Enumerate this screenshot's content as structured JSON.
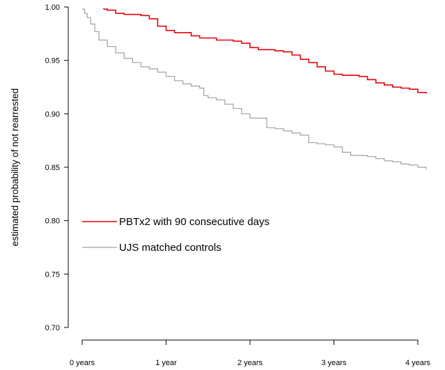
{
  "chart_data": {
    "type": "line",
    "title": "",
    "xlabel": "",
    "ylabel": "estimated probability of not rearrested",
    "xlim": [
      0,
      4.1
    ],
    "ylim": [
      0.7,
      1.0
    ],
    "x_ticks": [
      {
        "value": 0,
        "label": "0 years"
      },
      {
        "value": 1,
        "label": "1 year"
      },
      {
        "value": 2,
        "label": "2 years"
      },
      {
        "value": 3,
        "label": "3 years"
      },
      {
        "value": 4,
        "label": "4 years"
      }
    ],
    "y_ticks": [
      {
        "value": 0.7,
        "label": "0.70"
      },
      {
        "value": 0.75,
        "label": "0.75"
      },
      {
        "value": 0.8,
        "label": "0.80"
      },
      {
        "value": 0.85,
        "label": "0.85"
      },
      {
        "value": 0.9,
        "label": "0.90"
      },
      {
        "value": 0.95,
        "label": "0.95"
      },
      {
        "value": 1.0,
        "label": "1.00"
      }
    ],
    "grid": false,
    "legend_position": "center-left",
    "series": [
      {
        "name": "PBTx2 with 90 consecutive days",
        "color": "#e8000b",
        "step": true,
        "x": [
          0.25,
          0.3,
          0.4,
          0.5,
          0.6,
          0.7,
          0.8,
          0.9,
          1.0,
          1.1,
          1.2,
          1.3,
          1.4,
          1.5,
          1.6,
          1.8,
          1.9,
          2.0,
          2.1,
          2.3,
          2.4,
          2.5,
          2.6,
          2.7,
          2.8,
          2.9,
          3.0,
          3.1,
          3.2,
          3.3,
          3.4,
          3.5,
          3.6,
          3.7,
          3.8,
          3.9,
          4.0,
          4.1
        ],
        "y": [
          0.998,
          0.997,
          0.994,
          0.993,
          0.993,
          0.992,
          0.989,
          0.982,
          0.978,
          0.976,
          0.976,
          0.973,
          0.971,
          0.971,
          0.969,
          0.968,
          0.966,
          0.962,
          0.96,
          0.959,
          0.958,
          0.955,
          0.951,
          0.948,
          0.944,
          0.94,
          0.937,
          0.936,
          0.936,
          0.935,
          0.932,
          0.929,
          0.927,
          0.925,
          0.924,
          0.923,
          0.92,
          0.919
        ]
      },
      {
        "name": "UJS matched controls",
        "color": "#a0a0a0",
        "step": true,
        "x": [
          0.0,
          0.03,
          0.06,
          0.1,
          0.15,
          0.2,
          0.3,
          0.4,
          0.5,
          0.6,
          0.7,
          0.8,
          0.9,
          1.0,
          1.1,
          1.2,
          1.3,
          1.4,
          1.45,
          1.5,
          1.6,
          1.7,
          1.8,
          1.9,
          2.0,
          2.2,
          2.3,
          2.4,
          2.5,
          2.6,
          2.7,
          2.8,
          2.9,
          3.0,
          3.1,
          3.2,
          3.4,
          3.5,
          3.6,
          3.7,
          3.8,
          3.9,
          4.0,
          4.1
        ],
        "y": [
          0.998,
          0.994,
          0.99,
          0.984,
          0.977,
          0.969,
          0.963,
          0.957,
          0.952,
          0.948,
          0.944,
          0.942,
          0.939,
          0.935,
          0.931,
          0.928,
          0.926,
          0.924,
          0.917,
          0.915,
          0.913,
          0.909,
          0.905,
          0.9,
          0.896,
          0.887,
          0.886,
          0.884,
          0.882,
          0.88,
          0.873,
          0.872,
          0.871,
          0.869,
          0.864,
          0.861,
          0.86,
          0.858,
          0.856,
          0.855,
          0.853,
          0.852,
          0.85,
          0.848
        ]
      }
    ]
  }
}
